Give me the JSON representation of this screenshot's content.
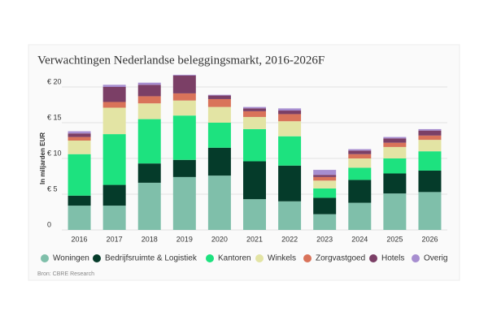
{
  "chart_data": {
    "type": "stacked-bar",
    "title": "Verwachtingen Nederlandse beleggingsmarkt, 2016-2026F",
    "y_label": "In miljarden EUR",
    "source": "Bron: CBRE Research",
    "categories": [
      "2016",
      "2017",
      "2018",
      "2019",
      "2020",
      "2021",
      "2022",
      "2023",
      "2024",
      "2025",
      "2026"
    ],
    "series": [
      {
        "name": "Woningen",
        "color": "#7fbfaa",
        "values": [
          3.4,
          3.4,
          6.6,
          7.4,
          7.6,
          4.3,
          4.0,
          2.2,
          3.8,
          5.1,
          5.3
        ]
      },
      {
        "name": "Bedrijfsruimte & Logistiek",
        "color": "#053b2a",
        "values": [
          1.4,
          2.9,
          2.7,
          2.4,
          3.9,
          5.3,
          5.0,
          2.3,
          3.2,
          2.8,
          3.0
        ]
      },
      {
        "name": "Kantoren",
        "color": "#1de27f",
        "values": [
          5.8,
          7.1,
          6.2,
          6.2,
          3.5,
          4.5,
          4.1,
          1.3,
          1.7,
          2.1,
          2.7
        ]
      },
      {
        "name": "Winkels",
        "color": "#e3e4a4",
        "values": [
          1.9,
          3.7,
          2.2,
          2.1,
          2.2,
          1.7,
          2.1,
          1.1,
          1.3,
          1.6,
          1.6
        ]
      },
      {
        "name": "Zorgvastgoed",
        "color": "#d9735a",
        "values": [
          0.5,
          0.8,
          1.0,
          1.0,
          1.1,
          0.8,
          1.0,
          0.5,
          0.6,
          0.6,
          0.6
        ]
      },
      {
        "name": "Hotels",
        "color": "#7b3f66",
        "values": [
          0.5,
          2.1,
          1.6,
          2.5,
          0.5,
          0.4,
          0.5,
          0.3,
          0.5,
          0.6,
          0.7
        ]
      },
      {
        "name": "Overig",
        "color": "#a78ed0",
        "values": [
          0.3,
          0.3,
          0.3,
          0.1,
          0.1,
          0.2,
          0.3,
          0.7,
          0.2,
          0.2,
          0.2
        ]
      }
    ],
    "ylim": [
      0,
      22
    ],
    "yticks": [
      0,
      {
        "value": 5,
        "label": "€ 5"
      },
      {
        "value": 10,
        "label": "€ 10"
      },
      {
        "value": 15,
        "label": "€ 15"
      },
      {
        "value": 20,
        "label": "€ 20"
      }
    ],
    "grid": true
  }
}
